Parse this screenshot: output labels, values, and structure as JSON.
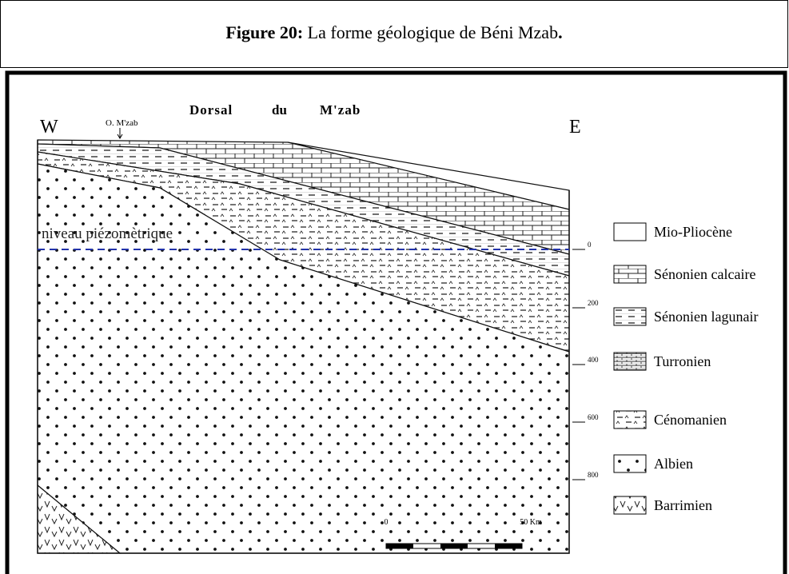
{
  "caption": {
    "label": "Figure 20:",
    "text": "La forme géologique de Béni Mzab",
    "end": "."
  },
  "diagram": {
    "west": "W",
    "east": "E",
    "wadi": "O. M'zab",
    "title": [
      "Dorsal",
      "du",
      "M'zab"
    ],
    "water_level": "niveau piézomètrique",
    "depths": [
      "0",
      "200",
      "400",
      "600",
      "800"
    ],
    "scale": [
      "0",
      "50 Km"
    ]
  },
  "legend": [
    "Mio-Pliocène",
    "Sénonien calcaire",
    "Sénonien lagunair",
    "Turronien",
    "Cénomanien",
    "Albien",
    "Barrimien"
  ]
}
